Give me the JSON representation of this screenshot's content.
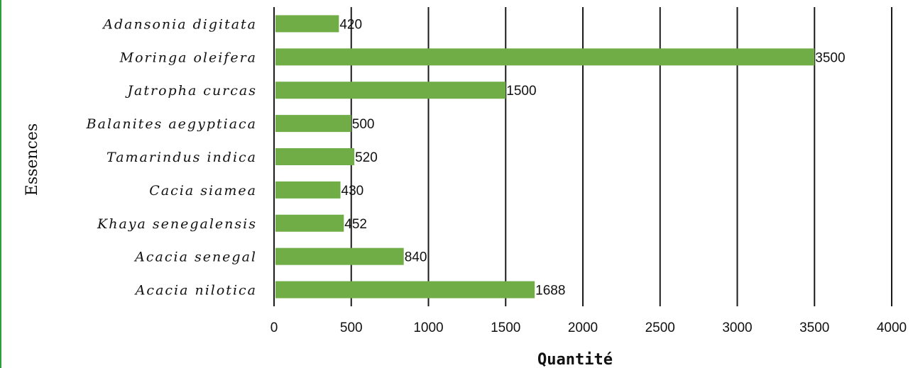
{
  "chart_data": {
    "type": "bar",
    "orientation": "horizontal",
    "categories": [
      "Adansonia digitata",
      "Moringa oleifera",
      "Jatropha curcas",
      "Balanites aegyptiaca",
      "Tamarindus indica",
      "Cacia siamea",
      "Khaya senegalensis",
      "Acacia senegal",
      "Acacia nilotica"
    ],
    "values": [
      420,
      3500,
      1500,
      500,
      520,
      430,
      452,
      840,
      1688
    ],
    "xlabel": "Quantité",
    "ylabel": "Essences",
    "xlim": [
      0,
      4000
    ],
    "xticks": [
      0,
      500,
      1000,
      1500,
      2000,
      2500,
      3000,
      3500,
      4000
    ],
    "bar_color": "#70ad47",
    "grid": "vertical",
    "data_labels": true
  }
}
